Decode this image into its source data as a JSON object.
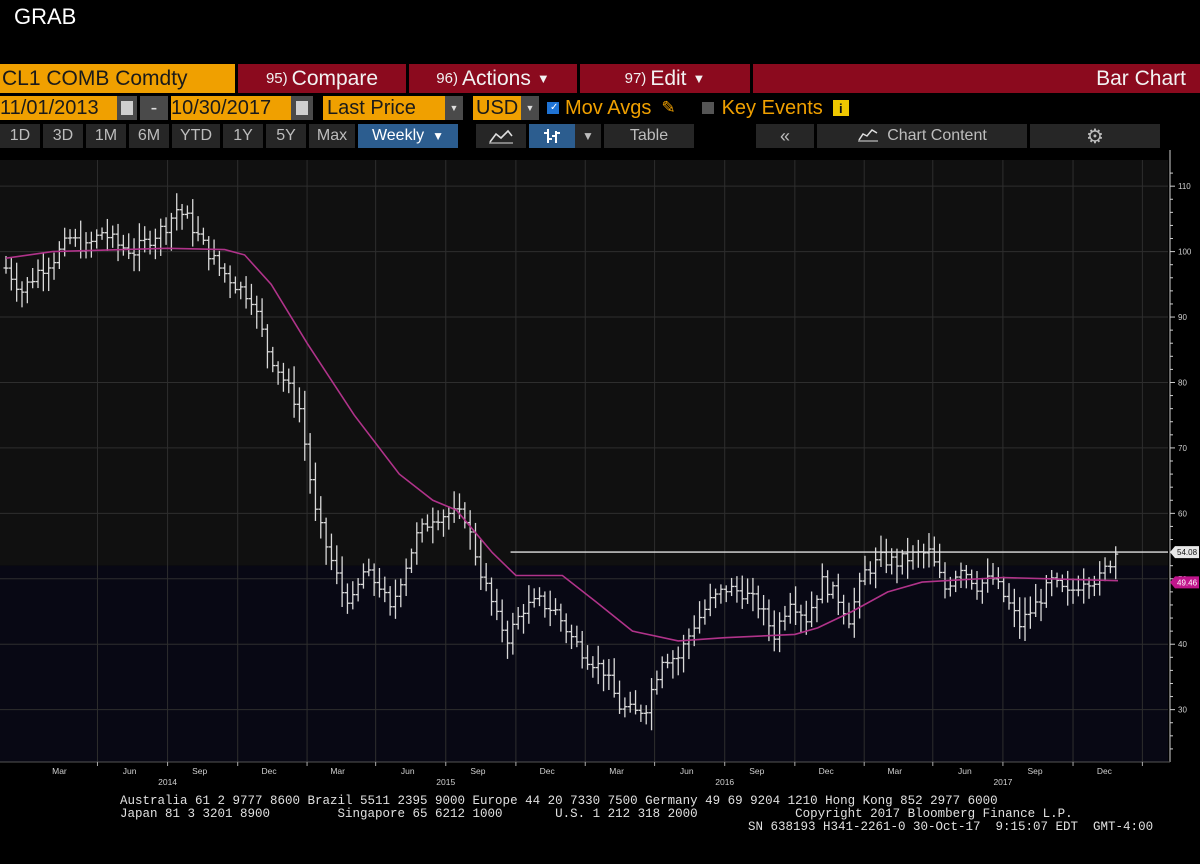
{
  "window": {
    "title": "GRAB"
  },
  "toolbar": {
    "ticker": "CL1 COMB Comdty",
    "compare": {
      "num": "95)",
      "label": "Compare"
    },
    "actions": {
      "num": "96)",
      "label": "Actions"
    },
    "edit": {
      "num": "97)",
      "label": "Edit"
    },
    "view_title": "Bar Chart"
  },
  "controls": {
    "start_date": "11/01/2013",
    "separator": "-",
    "end_date": "10/30/2017",
    "field": "Last Price",
    "currency": "USD",
    "mov_avgs": {
      "label": "Mov Avgs",
      "checked": true
    },
    "key_events": {
      "label": "Key Events",
      "checked": false
    }
  },
  "periods": [
    "1D",
    "3D",
    "1M",
    "6M",
    "YTD",
    "1Y",
    "5Y",
    "Max"
  ],
  "frequency": "Weekly",
  "table_label": "Table",
  "chart_content_label": "Chart Content",
  "colors": {
    "amber": "#f0a000",
    "red": "#8b0a1e",
    "ma": "#b0338a",
    "bars": "#d9d9d9",
    "last": "#e0e0e0"
  },
  "chart_data": {
    "type": "bar",
    "subtype": "ohlc-weekly",
    "x_start": "2013-11-01",
    "x_end": "2017-10-30",
    "ylim": [
      22,
      114
    ],
    "yticks": [
      30,
      40,
      50,
      60,
      70,
      80,
      90,
      100,
      110
    ],
    "xticks": [
      {
        "date": "2014-03-01",
        "label": "Mar",
        "year": ""
      },
      {
        "date": "2014-06-01",
        "label": "Jun",
        "year": "2014"
      },
      {
        "date": "2014-09-01",
        "label": "Sep",
        "year": ""
      },
      {
        "date": "2014-12-01",
        "label": "Dec",
        "year": ""
      },
      {
        "date": "2015-03-01",
        "label": "Mar",
        "year": ""
      },
      {
        "date": "2015-06-01",
        "label": "Jun",
        "year": "2015"
      },
      {
        "date": "2015-09-01",
        "label": "Sep",
        "year": ""
      },
      {
        "date": "2015-12-01",
        "label": "Dec",
        "year": ""
      },
      {
        "date": "2016-03-01",
        "label": "Mar",
        "year": ""
      },
      {
        "date": "2016-06-01",
        "label": "Jun",
        "year": "2016"
      },
      {
        "date": "2016-09-01",
        "label": "Sep",
        "year": ""
      },
      {
        "date": "2016-12-01",
        "label": "Dec",
        "year": ""
      },
      {
        "date": "2017-03-01",
        "label": "Mar",
        "year": ""
      },
      {
        "date": "2017-06-01",
        "label": "Jun",
        "year": "2017"
      },
      {
        "date": "2017-09-01",
        "label": "Sep",
        "year": ""
      },
      {
        "date": "2017-12-01",
        "label": "Dec",
        "year": ""
      }
    ],
    "price_series": {
      "points": [
        [
          "2013-11-01",
          97.5
        ],
        [
          "2013-11-22",
          94
        ],
        [
          "2013-12-13",
          97
        ],
        [
          "2014-01-03",
          99
        ],
        [
          "2014-01-24",
          102
        ],
        [
          "2014-02-14",
          100.5
        ],
        [
          "2014-03-07",
          103
        ],
        [
          "2014-03-28",
          101
        ],
        [
          "2014-04-18",
          100
        ],
        [
          "2014-05-09",
          102
        ],
        [
          "2014-05-30",
          104
        ],
        [
          "2014-06-13",
          106.5
        ],
        [
          "2014-06-27",
          105
        ],
        [
          "2014-07-18",
          101
        ],
        [
          "2014-08-08",
          97.5
        ],
        [
          "2014-08-29",
          95
        ],
        [
          "2014-09-19",
          93
        ],
        [
          "2014-10-10",
          85
        ],
        [
          "2014-10-31",
          80.5
        ],
        [
          "2014-11-21",
          76
        ],
        [
          "2014-12-12",
          60
        ],
        [
          "2014-12-26",
          55
        ],
        [
          "2015-01-16",
          48
        ],
        [
          "2015-01-30",
          46.5
        ],
        [
          "2015-02-13",
          51
        ],
        [
          "2015-03-06",
          49
        ],
        [
          "2015-03-20",
          45
        ],
        [
          "2015-04-03",
          50
        ],
        [
          "2015-04-24",
          56.5
        ],
        [
          "2015-05-15",
          59.5
        ],
        [
          "2015-06-05",
          60
        ],
        [
          "2015-06-26",
          59.5
        ],
        [
          "2015-07-17",
          51
        ],
        [
          "2015-08-07",
          44
        ],
        [
          "2015-08-21",
          41
        ],
        [
          "2015-09-11",
          45.5
        ],
        [
          "2015-10-02",
          46.5
        ],
        [
          "2015-10-23",
          45
        ],
        [
          "2015-11-13",
          41
        ],
        [
          "2015-12-04",
          38
        ],
        [
          "2015-12-25",
          36
        ],
        [
          "2016-01-15",
          30.5
        ],
        [
          "2016-02-05",
          29.5
        ],
        [
          "2016-02-19",
          30.5
        ],
        [
          "2016-03-11",
          38
        ],
        [
          "2016-04-01",
          38
        ],
        [
          "2016-04-22",
          43
        ],
        [
          "2016-05-13",
          46.5
        ],
        [
          "2016-06-03",
          48.5
        ],
        [
          "2016-06-24",
          48
        ],
        [
          "2016-07-15",
          46
        ],
        [
          "2016-08-05",
          41.5
        ],
        [
          "2016-08-26",
          47
        ],
        [
          "2016-09-16",
          44
        ],
        [
          "2016-10-07",
          49.5
        ],
        [
          "2016-10-28",
          47
        ],
        [
          "2016-11-11",
          44
        ],
        [
          "2016-12-02",
          51
        ],
        [
          "2016-12-23",
          53
        ],
        [
          "2017-01-13",
          52.5
        ],
        [
          "2017-02-03",
          53.5
        ],
        [
          "2017-02-24",
          54
        ],
        [
          "2017-03-17",
          48.5
        ],
        [
          "2017-04-07",
          52
        ],
        [
          "2017-04-28",
          49
        ],
        [
          "2017-05-19",
          50
        ],
        [
          "2017-06-09",
          46
        ],
        [
          "2017-06-23",
          43
        ],
        [
          "2017-07-14",
          46
        ],
        [
          "2017-08-04",
          49.5
        ],
        [
          "2017-08-25",
          47.5
        ],
        [
          "2017-09-15",
          50
        ],
        [
          "2017-10-06",
          50
        ],
        [
          "2017-10-27",
          54
        ]
      ]
    },
    "moving_average": {
      "points": [
        [
          "2013-11-01",
          99
        ],
        [
          "2014-01-01",
          100
        ],
        [
          "2014-06-01",
          100.5
        ],
        [
          "2014-08-15",
          100.3
        ],
        [
          "2014-09-10",
          99.5
        ],
        [
          "2014-10-15",
          95
        ],
        [
          "2014-12-01",
          86
        ],
        [
          "2015-02-01",
          75
        ],
        [
          "2015-04-01",
          66
        ],
        [
          "2015-05-15",
          62
        ],
        [
          "2015-06-15",
          60.5
        ],
        [
          "2015-08-01",
          54
        ],
        [
          "2015-09-01",
          50.5
        ],
        [
          "2015-11-01",
          50.5
        ],
        [
          "2015-12-15",
          46.5
        ],
        [
          "2016-02-01",
          42
        ],
        [
          "2016-04-01",
          40.5
        ],
        [
          "2016-06-01",
          41
        ],
        [
          "2016-09-01",
          41.5
        ],
        [
          "2016-10-01",
          42.5
        ],
        [
          "2016-11-15",
          45
        ],
        [
          "2017-01-01",
          48
        ],
        [
          "2017-02-15",
          49.5
        ],
        [
          "2017-04-01",
          49.8
        ],
        [
          "2017-06-01",
          50.2
        ],
        [
          "2017-08-01",
          50
        ],
        [
          "2017-10-30",
          49.7
        ]
      ]
    },
    "last_price": 54.08,
    "last_price_label": "54.08",
    "ma_value": 49.46,
    "ma_label": "49.46"
  },
  "footer": {
    "line1": "Australia 61 2 9777 8600 Brazil 5511 2395 9000 Europe 44 20 7330 7500 Germany 49 69 9204 1210 Hong Kong 852 2977 6000",
    "line2": "Japan 81 3 3201 8900         Singapore 65 6212 1000       U.S. 1 212 318 2000             Copyright 2017 Bloomberg Finance L.P.",
    "line3": "SN 638193 H341-2261-0 30-Oct-17  9:15:07 EDT  GMT-4:00"
  }
}
